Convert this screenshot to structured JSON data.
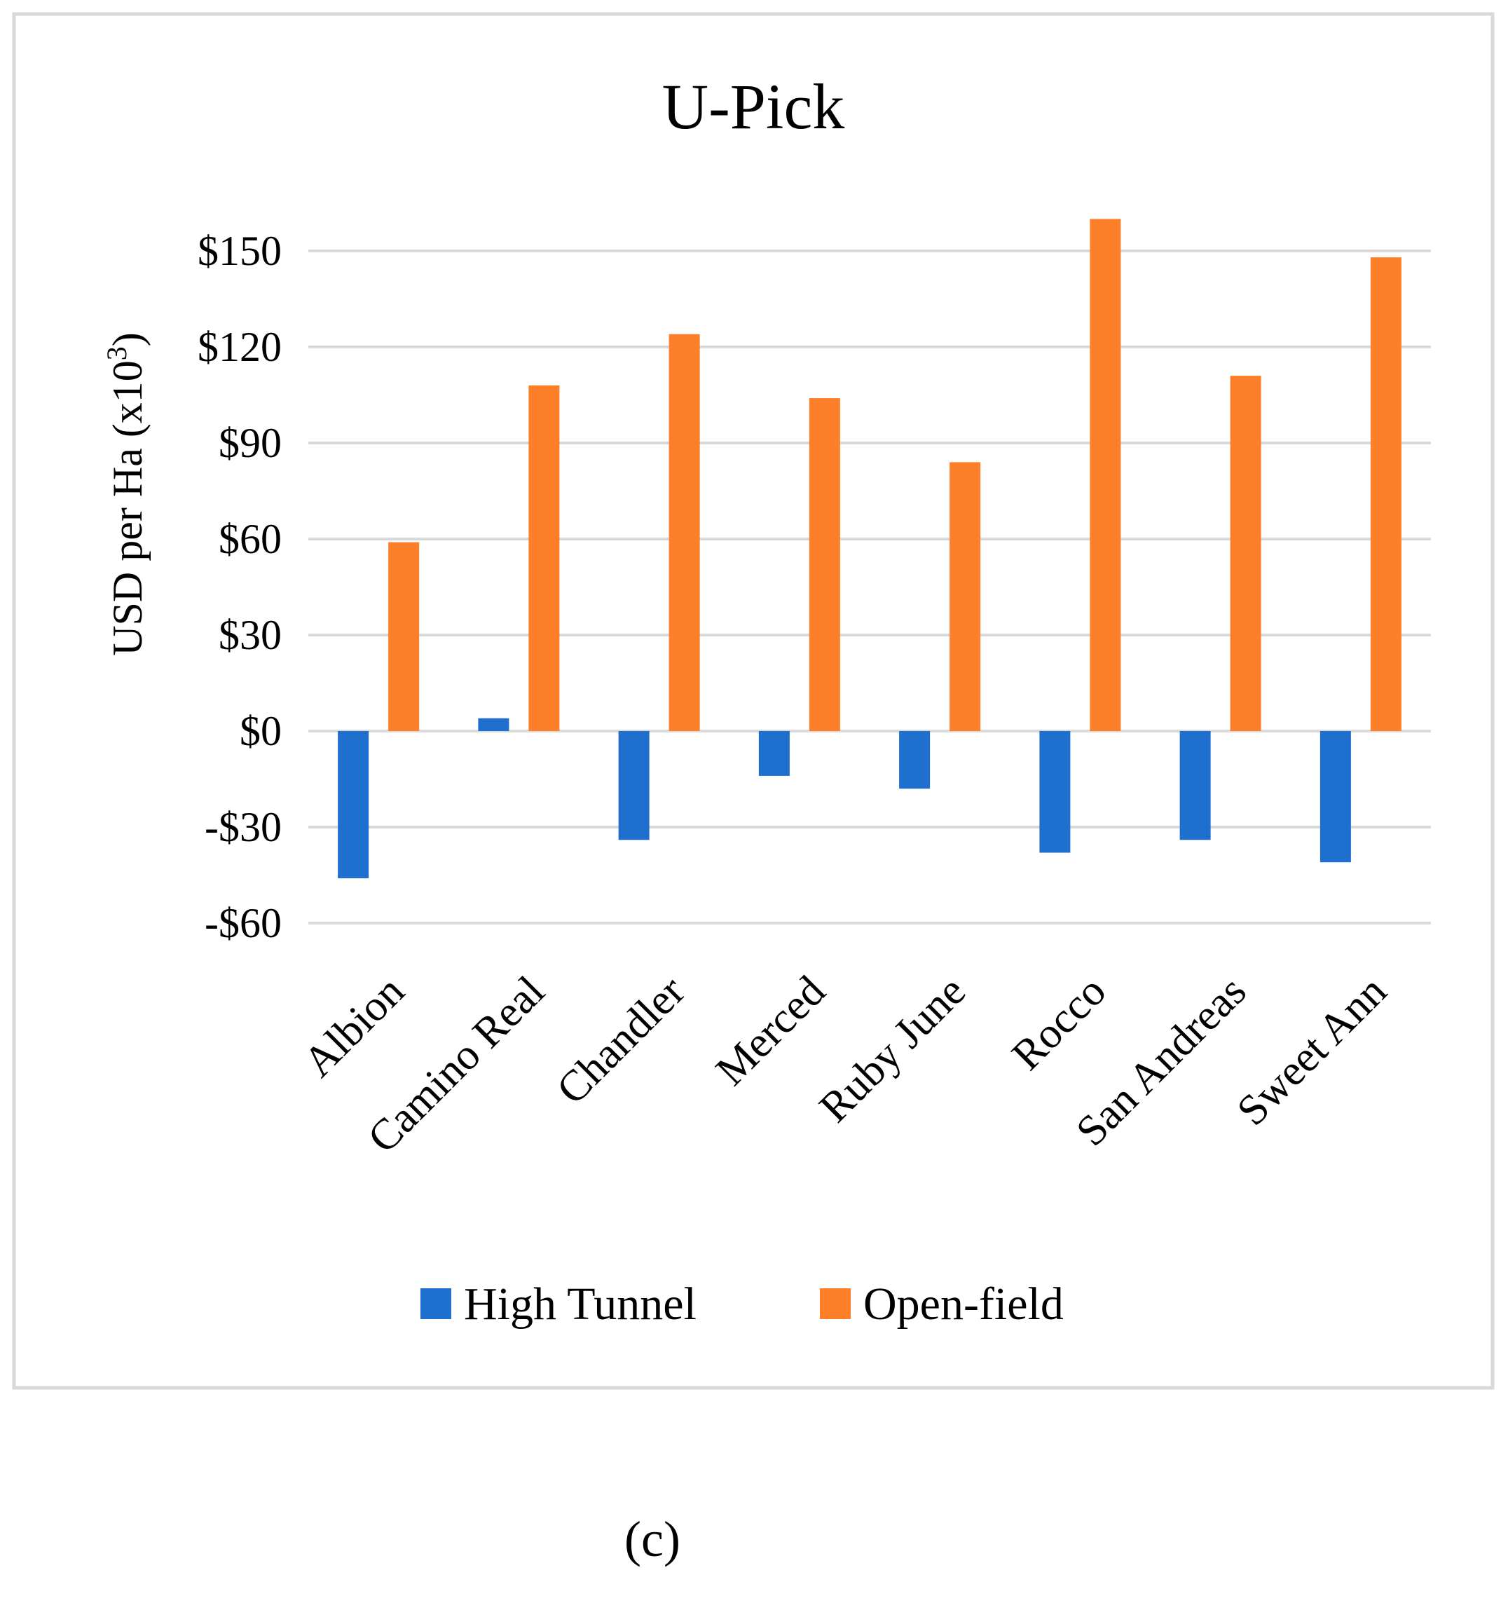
{
  "chart_data": {
    "type": "bar",
    "title": "U-Pick",
    "ylabel": "USD per Ha (x10",
    "ylabel_sup": "3",
    "ylabel_close": ")",
    "xlabel": "",
    "ylim": [
      -60,
      150
    ],
    "yticks": [
      150,
      120,
      90,
      60,
      30,
      0,
      -30,
      -60
    ],
    "ytick_labels": [
      "$150",
      "$120",
      "$90",
      "$60",
      "$30",
      "$0",
      "-$30",
      "-$60"
    ],
    "categories": [
      "Albion",
      "Camino Real",
      "Chandler",
      "Merced",
      "Ruby June",
      "Rocco",
      "San Andreas",
      "Sweet Ann"
    ],
    "series": [
      {
        "name": "High Tunnel",
        "color": "#1f6fce",
        "values": [
          -46,
          4,
          -34,
          -14,
          -18,
          -38,
          -34,
          -41
        ]
      },
      {
        "name": "Open-field",
        "color": "#fd7f2a",
        "values": [
          59,
          108,
          124,
          104,
          84,
          160,
          111,
          148
        ]
      }
    ],
    "grid": true,
    "legend": "bottom"
  },
  "panel_label": "(c)"
}
